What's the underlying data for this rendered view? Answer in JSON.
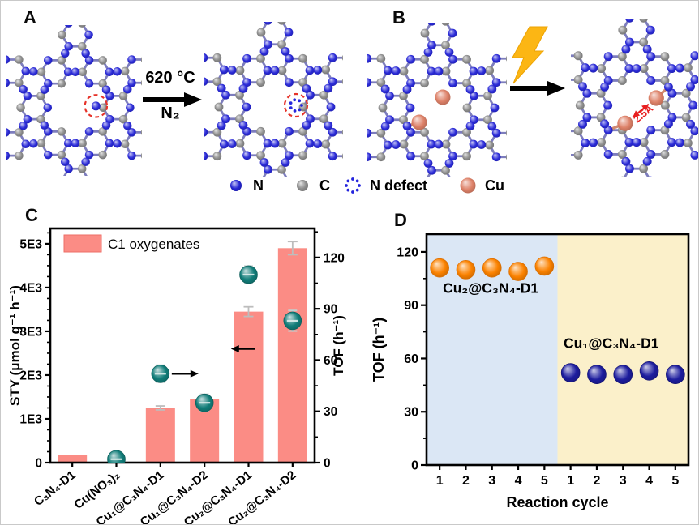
{
  "figure": {
    "panel_a": {
      "label": "A",
      "condition_top": "620 °C",
      "condition_bottom": "N₂"
    },
    "panel_b": {
      "label": "B",
      "distance_annotation": "2.5Å"
    },
    "panel_c": {
      "label": "C"
    },
    "panel_d": {
      "label": "D"
    },
    "atom_legend": [
      {
        "name": "nitrogen",
        "label": "N",
        "style": "ball",
        "color": "#2424d2"
      },
      {
        "name": "carbon",
        "label": "C",
        "style": "ball",
        "color": "#8d8d8d"
      },
      {
        "name": "n-defect",
        "label": "N defect",
        "style": "dotted-circle",
        "color": "#2424dd"
      },
      {
        "name": "copper",
        "label": "Cu",
        "style": "ball",
        "color": "#dd8168"
      }
    ]
  },
  "chart_data": [
    {
      "panel": "C",
      "type": "bar",
      "categories": [
        "C₃N₄-D1",
        "Cu(NO₃)₂",
        "Cu₁@C₃N₄-D1",
        "Cu₁@C₃N₄-D2",
        "Cu₂@C₃N₄-D1",
        "Cu₂@C₃N₄-D2"
      ],
      "ylabel_left": "STY (μmol g⁻¹ h⁻¹)",
      "ylabel_right": "TOF (h⁻¹)",
      "yticks_left": {
        "labels": [
          "0",
          "1E3",
          "2E3",
          "3E3",
          "4E3",
          "5E3"
        ],
        "values": [
          0,
          1000,
          2000,
          3000,
          4000,
          5000
        ]
      },
      "yticks_right": [
        0,
        30,
        60,
        90,
        120
      ],
      "ylim_left": [
        0,
        5350
      ],
      "ylim_right": [
        0,
        137
      ],
      "legend_label": "C1 oxygenates",
      "series": [
        {
          "name": "C1 oxygenates",
          "type": "bar",
          "axis": "left",
          "color": "#fb8c85",
          "values": [
            180,
            0,
            1250,
            1450,
            3450,
            4900
          ],
          "errors": [
            0,
            0,
            45,
            45,
            110,
            150
          ]
        },
        {
          "name": "TOF",
          "type": "scatter",
          "axis": "right",
          "color": "#107d79",
          "values": [
            null,
            2,
            52,
            35,
            110,
            83
          ],
          "errors": [
            null,
            2,
            5,
            5,
            5,
            6
          ]
        }
      ],
      "annotations": [
        {
          "type": "arrow-right",
          "meaning": "points-read-right-axis",
          "category_index": 2,
          "value_right": 52
        },
        {
          "type": "arrow-left",
          "meaning": "bars-read-left-axis",
          "category_index": 3.6,
          "value_left": 2600
        }
      ]
    },
    {
      "panel": "D",
      "type": "scatter",
      "xlabel": "Reaction cycle",
      "ylabel": "TOF (h⁻¹)",
      "yticks": [
        0,
        30,
        60,
        90,
        120
      ],
      "ylim": [
        0,
        130
      ],
      "x_ticks": [
        "1",
        "2",
        "3",
        "4",
        "5",
        "1",
        "2",
        "3",
        "4",
        "5"
      ],
      "series": [
        {
          "name": "Cu₂@C₃N₄-D1",
          "color": "#fb8200",
          "background": "#dbe7f5",
          "cycles": [
            1,
            2,
            3,
            4,
            5
          ],
          "values": [
            111,
            110,
            111,
            109,
            112
          ]
        },
        {
          "name": "Cu₁@C₃N₄-D1",
          "color": "#1d1d9e",
          "background": "#fbf0ca",
          "cycles": [
            1,
            2,
            3,
            4,
            5
          ],
          "values": [
            52,
            51,
            51,
            53,
            51
          ]
        }
      ]
    }
  ]
}
